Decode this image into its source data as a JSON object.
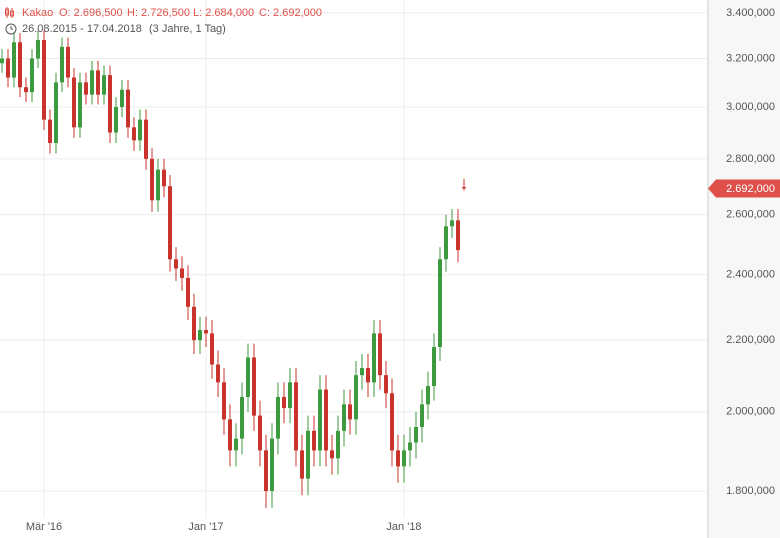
{
  "chart_data": {
    "type": "candlestick",
    "title": "Kakao",
    "ohlc_labels": [
      "O: 2.696,500",
      "H: 2.726,500",
      "L: 2.684,000",
      "C: 2.692,000"
    ],
    "date_range": "26.08.2015 - 17.04.2018",
    "period": "(3 Jahre, 1 Tag)",
    "log_scale": true,
    "grid": true,
    "up_color": "#3e9a3e",
    "down_color": "#c8332b",
    "ylim": [
      1691,
      3459
    ],
    "yticks": [
      {
        "value": 1800,
        "label": "1.800,000"
      },
      {
        "value": 2000,
        "label": "2.000,000"
      },
      {
        "value": 2200,
        "label": "2.200,000"
      },
      {
        "value": 2400,
        "label": "2.400,000"
      },
      {
        "value": 2600,
        "label": "2.600,000"
      },
      {
        "value": 2800,
        "label": "2.800,000"
      },
      {
        "value": 3000,
        "label": "3.000,000"
      },
      {
        "value": 3200,
        "label": "3.200,000"
      },
      {
        "value": 3400,
        "label": "3.400,000"
      }
    ],
    "last_close_label": "2.692,000",
    "categories": [
      null,
      null,
      null,
      null,
      null,
      null,
      null,
      "Mär '16",
      null,
      null,
      null,
      null,
      null,
      null,
      null,
      null,
      null,
      null,
      null,
      null,
      null,
      null,
      null,
      null,
      null,
      null,
      null,
      null,
      null,
      null,
      null,
      null,
      null,
      null,
      "Jan '17",
      null,
      null,
      null,
      null,
      null,
      null,
      null,
      null,
      null,
      null,
      null,
      null,
      null,
      null,
      null,
      null,
      null,
      null,
      null,
      null,
      null,
      null,
      null,
      null,
      null,
      null,
      null,
      null,
      null,
      null,
      null,
      null,
      "Jan '18",
      null,
      null,
      null,
      null,
      null,
      null,
      null,
      null,
      null,
      null
    ],
    "open": [
      3180,
      3200,
      3120,
      3270,
      3080,
      3060,
      3200,
      3280,
      2950,
      2860,
      3100,
      3250,
      3120,
      2920,
      3100,
      3050,
      3150,
      3050,
      3130,
      2900,
      3000,
      3070,
      2920,
      2870,
      2950,
      2800,
      2650,
      2760,
      2700,
      2450,
      2420,
      2390,
      2300,
      2200,
      2230,
      2220,
      2130,
      2080,
      1980,
      1900,
      1930,
      2040,
      2150,
      1990,
      1900,
      1800,
      1930,
      2040,
      2010,
      2080,
      1900,
      1830,
      1950,
      1900,
      2060,
      1900,
      1880,
      1950,
      2020,
      1980,
      2100,
      2120,
      2080,
      2220,
      2100,
      2050,
      1900,
      1860,
      1900,
      1920,
      1960,
      2020,
      2070,
      2180,
      2450,
      2560,
      2580,
      2696.5
    ],
    "high": [
      3240,
      3240,
      3310,
      3310,
      3120,
      3240,
      3320,
      3320,
      2990,
      3140,
      3290,
      3290,
      3160,
      3140,
      3140,
      3190,
      3190,
      3170,
      3170,
      3040,
      3110,
      3110,
      2960,
      2990,
      2990,
      2840,
      2800,
      2800,
      2740,
      2490,
      2460,
      2430,
      2340,
      2270,
      2270,
      2260,
      2170,
      2120,
      2020,
      1970,
      2080,
      2190,
      2190,
      2030,
      1940,
      1970,
      2080,
      2080,
      2120,
      2120,
      1940,
      1990,
      1990,
      2100,
      2100,
      1940,
      1990,
      2060,
      2060,
      2140,
      2160,
      2160,
      2260,
      2260,
      2140,
      2090,
      1940,
      1940,
      1960,
      2000,
      2060,
      2110,
      2220,
      2490,
      2600,
      2620,
      2620,
      2726.5
    ],
    "low": [
      3140,
      3080,
      3080,
      3040,
      3020,
      3020,
      3160,
      2910,
      2820,
      2820,
      3060,
      3080,
      2880,
      2880,
      3010,
      3010,
      3010,
      3010,
      2860,
      2860,
      2960,
      2880,
      2830,
      2830,
      2760,
      2610,
      2610,
      2660,
      2410,
      2380,
      2350,
      2260,
      2160,
      2160,
      2180,
      2090,
      2040,
      1940,
      1860,
      1860,
      1890,
      2000,
      1950,
      1860,
      1760,
      1760,
      1890,
      1970,
      1970,
      1860,
      1790,
      1790,
      1860,
      1860,
      1860,
      1840,
      1840,
      1910,
      1940,
      1940,
      2060,
      2040,
      2040,
      2060,
      2010,
      1860,
      1820,
      1820,
      1860,
      1880,
      1920,
      1980,
      2030,
      2140,
      2410,
      2520,
      2440,
      2684
    ],
    "close": [
      3200,
      3120,
      3270,
      3080,
      3060,
      3200,
      3280,
      2950,
      2860,
      3100,
      3250,
      3120,
      2920,
      3100,
      3050,
      3150,
      3050,
      3130,
      2900,
      3000,
      3070,
      2920,
      2870,
      2950,
      2800,
      2650,
      2760,
      2700,
      2450,
      2420,
      2390,
      2300,
      2200,
      2230,
      2220,
      2130,
      2080,
      1980,
      1900,
      1930,
      2040,
      2150,
      1990,
      1900,
      1800,
      1930,
      2040,
      2010,
      2080,
      1900,
      1830,
      1950,
      1900,
      2060,
      1900,
      1880,
      1950,
      2020,
      1980,
      2100,
      2120,
      2080,
      2220,
      2100,
      2050,
      1900,
      1860,
      1900,
      1920,
      1960,
      2020,
      2070,
      2180,
      2450,
      2560,
      2580,
      2480,
      2692
    ]
  }
}
